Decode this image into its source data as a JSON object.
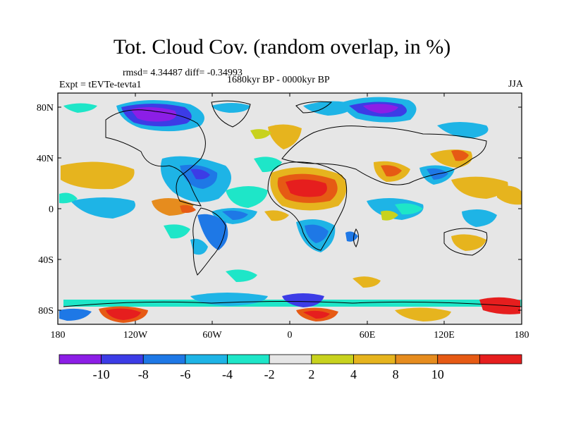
{
  "title": "Tot. Cloud Cov. (random overlap, in %)",
  "stats": "rmsd= 4.34487 diff= -0.34993",
  "experiment": "Expt = tEVTe-tevta1",
  "period": "1680kyr BP - 0000kyr BP",
  "season": "JJA",
  "lat_ticks": [
    "80N",
    "40N",
    "0",
    "40S",
    "80S"
  ],
  "lon_ticks": [
    "180",
    "120W",
    "60W",
    "0",
    "60E",
    "120E",
    "180"
  ],
  "colorbar": {
    "labels": [
      "-10",
      "-8",
      "-6",
      "-4",
      "-2",
      "2",
      "4",
      "8",
      "10"
    ],
    "colors": [
      "#8c1ee6",
      "#3c3ce6",
      "#1e78e6",
      "#1eb4e6",
      "#1ee6c8",
      "#e6e6e6",
      "#c8d21e",
      "#e6b41e",
      "#e68c1e",
      "#e65a14",
      "#e61e1e"
    ]
  },
  "chart_data": {
    "type": "heatmap",
    "title": "Tot. Cloud Cov. (random overlap, in %)",
    "xlim": [
      -180,
      180
    ],
    "ylim": [
      -90,
      90
    ],
    "levels": [
      -10,
      -8,
      -6,
      -4,
      -2,
      2,
      4,
      8,
      10
    ]
  }
}
